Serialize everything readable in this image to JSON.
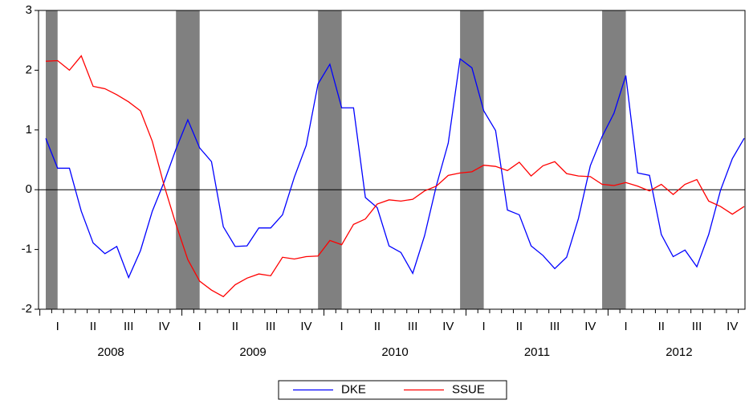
{
  "chart_data": {
    "type": "line",
    "categories": [
      null,
      "I",
      null,
      null,
      "II",
      null,
      null,
      "III",
      null,
      null,
      "IV",
      null,
      null,
      "I",
      null,
      null,
      "II",
      null,
      null,
      "III",
      null,
      null,
      "IV",
      null,
      null,
      "I",
      null,
      null,
      "II",
      null,
      null,
      "III",
      null,
      null,
      "IV",
      null,
      null,
      "I",
      null,
      null,
      "II",
      null,
      null,
      "III",
      null,
      null,
      "IV",
      null,
      null,
      "I",
      null,
      null,
      "II",
      null,
      null,
      "III",
      null,
      null,
      "IV",
      null
    ],
    "years": [
      2008,
      2009,
      2010,
      2011,
      2012
    ],
    "shaded": [
      [
        0,
        1
      ],
      [
        11,
        13
      ],
      [
        23,
        25
      ],
      [
        35,
        37
      ],
      [
        47,
        49
      ]
    ],
    "shade_color": "#808080",
    "ylim": [
      -2,
      3
    ],
    "yticks": [
      -2,
      -1,
      0,
      1,
      2,
      3
    ],
    "zero_line": true,
    "legend": "bottom",
    "series": [
      {
        "name": "DKE",
        "color": "#0000ff",
        "values": [
          0.86,
          0.36,
          0.36,
          -0.36,
          -0.89,
          -1.07,
          -0.95,
          -1.47,
          -1.02,
          -0.36,
          0.13,
          0.68,
          1.17,
          0.7,
          0.47,
          -0.62,
          -0.95,
          -0.94,
          -0.64,
          -0.64,
          -0.42,
          0.21,
          0.74,
          1.77,
          2.1,
          1.37,
          1.37,
          -0.13,
          -0.3,
          -0.94,
          -1.05,
          -1.4,
          -0.77,
          0.07,
          0.78,
          2.19,
          2.04,
          1.32,
          0.99,
          -0.34,
          -0.42,
          -0.94,
          -1.1,
          -1.32,
          -1.13,
          -0.48,
          0.4,
          0.89,
          1.28,
          1.91,
          0.28,
          0.24,
          -0.75,
          -1.12,
          -1.01,
          -1.29,
          -0.75,
          -0.01,
          0.52,
          0.86
        ]
      },
      {
        "name": "SSUE",
        "color": "#ff0000",
        "values": [
          2.15,
          2.16,
          2.0,
          2.24,
          1.73,
          1.69,
          1.59,
          1.47,
          1.32,
          0.81,
          0.07,
          -0.58,
          -1.17,
          -1.53,
          -1.68,
          -1.79,
          -1.59,
          -1.48,
          -1.41,
          -1.44,
          -1.13,
          -1.16,
          -1.12,
          -1.11,
          -0.85,
          -0.92,
          -0.58,
          -0.49,
          -0.24,
          -0.17,
          -0.19,
          -0.16,
          -0.02,
          0.06,
          0.24,
          0.28,
          0.3,
          0.41,
          0.39,
          0.32,
          0.46,
          0.23,
          0.4,
          0.47,
          0.27,
          0.23,
          0.22,
          0.09,
          0.07,
          0.12,
          0.06,
          -0.02,
          0.09,
          -0.08,
          0.09,
          0.17,
          -0.19,
          -0.28,
          -0.41,
          -0.28
        ]
      }
    ]
  }
}
